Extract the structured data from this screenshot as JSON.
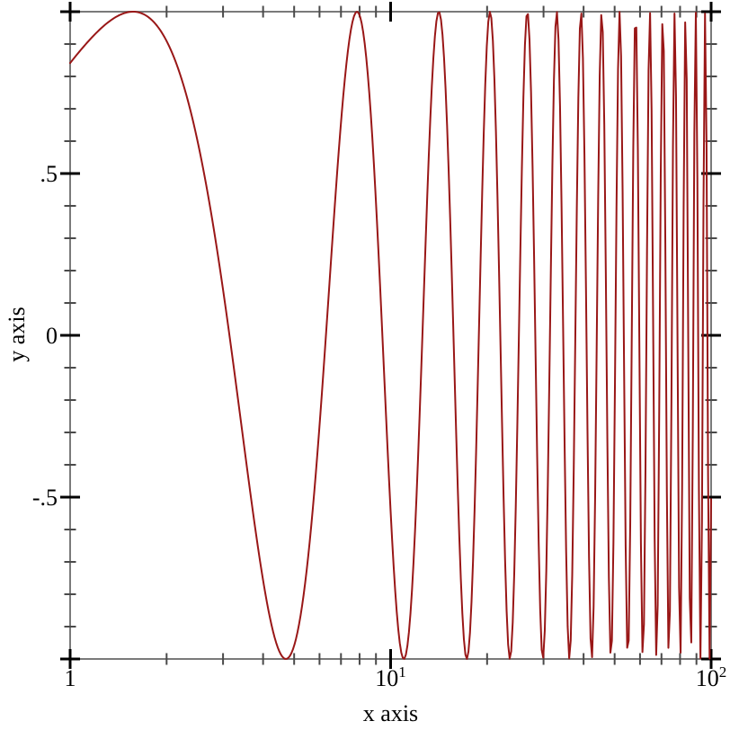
{
  "chart_data": {
    "type": "line",
    "title": "",
    "xlabel": "x axis",
    "ylabel": "y axis",
    "x_scale": "log10",
    "x_range": [
      1,
      100
    ],
    "y_range": [
      -1,
      1
    ],
    "grid": false,
    "legend": false,
    "series": [
      {
        "name": "sin(x)",
        "function": "sin",
        "color": "#991717",
        "stroke_width": 2,
        "samples": 420,
        "sample_space": "log10"
      }
    ],
    "x_ticks": {
      "major": [
        {
          "v": 1,
          "label": "1"
        },
        {
          "v": 10,
          "base": "10",
          "exp": "1"
        },
        {
          "v": 100,
          "base": "10",
          "exp": "2"
        }
      ],
      "minor": [
        2,
        3,
        4,
        5,
        6,
        7,
        8,
        9,
        20,
        30,
        40,
        50,
        60,
        70,
        80,
        90
      ]
    },
    "y_ticks": {
      "major": [
        {
          "v": 1,
          "label": ""
        },
        {
          "v": 0.5,
          "label": ".5"
        },
        {
          "v": 0,
          "label": "0"
        },
        {
          "v": -0.5,
          "label": "-.5"
        },
        {
          "v": -1,
          "label": ""
        }
      ],
      "minor": [
        0.9,
        0.8,
        0.7,
        0.6,
        0.4,
        0.3,
        0.2,
        0.1,
        -0.1,
        -0.2,
        -0.3,
        -0.4,
        -0.6,
        -0.7,
        -0.8,
        -0.9
      ]
    },
    "colors": {
      "background": "#ffffff",
      "border": "#7a7a7a",
      "major_tick": "#000000",
      "minor_tick": "#4a4a4a",
      "label": "#000000"
    }
  }
}
